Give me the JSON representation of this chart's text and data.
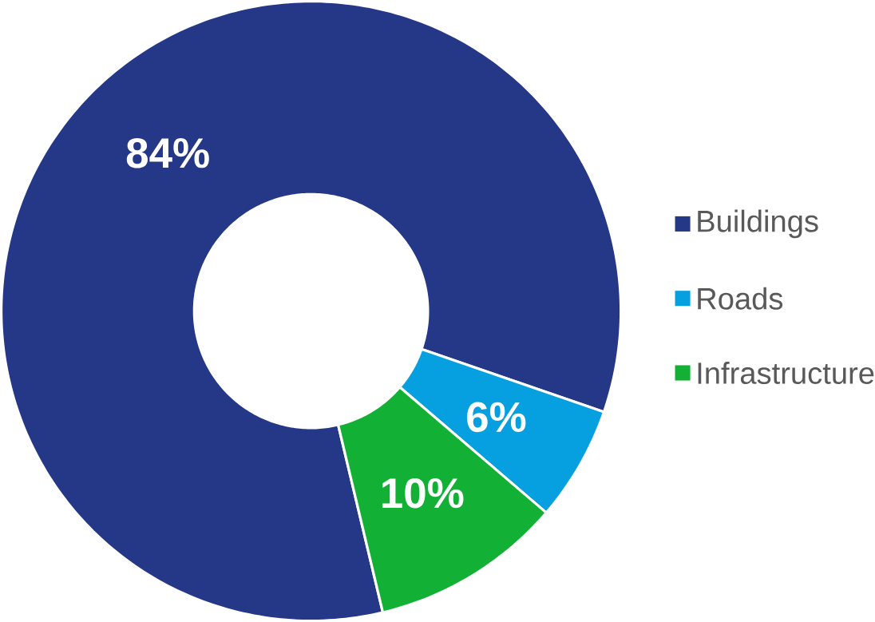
{
  "chart_data": {
    "type": "donut",
    "categories": [
      "Buildings",
      "Roads",
      "Infrastructure"
    ],
    "values": [
      84,
      6,
      10
    ],
    "colors": [
      "#253887",
      "#069fe0",
      "#12b035"
    ],
    "value_labels": [
      "84%",
      "6%",
      "10%"
    ],
    "legend": "right"
  }
}
